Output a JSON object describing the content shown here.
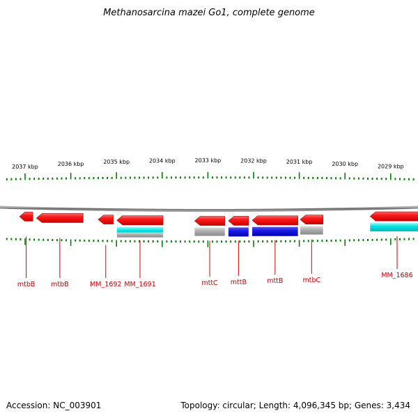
{
  "header": {
    "title": "Methanosarcina mazei Go1, complete genome"
  },
  "footer": {
    "accession": "Accession: NC_003901",
    "summary": "Topology: circular; Length: 4,096,345 bp; Genes: 3,434"
  },
  "scale": {
    "unit": "kbp",
    "ticks": [
      {
        "kbp": 2037,
        "label": "2037 kbp"
      },
      {
        "kbp": 2036,
        "label": "2036 kbp"
      },
      {
        "kbp": 2035,
        "label": "2035 kbp"
      },
      {
        "kbp": 2034,
        "label": "2034 kbp"
      },
      {
        "kbp": 2033,
        "label": "2033 kbp"
      },
      {
        "kbp": 2032,
        "label": "2032 kbp"
      },
      {
        "kbp": 2031,
        "label": "2031 kbp"
      },
      {
        "kbp": 2030,
        "label": "2030 kbp"
      },
      {
        "kbp": 2029,
        "label": "2029 kbp"
      }
    ]
  },
  "colors": {
    "backbone": "#888888",
    "gene": "#ee1111",
    "blue_feature": "#1a1ae6",
    "cyan_feature": "#00e5e5",
    "gray_feature": "#aaaaaa",
    "tick": "#008000",
    "label": "#cc0000"
  },
  "genes": [
    {
      "label": "mtbB",
      "start_kbp": 2037.12,
      "end_kbp": 2036.83,
      "strand": "reverse"
    },
    {
      "label": "mtbB",
      "start_kbp": 2036.75,
      "end_kbp": 2035.73,
      "strand": "reverse"
    },
    {
      "label": "MM_1692",
      "start_kbp": 2035.4,
      "end_kbp": 2035.07,
      "strand": "reverse"
    },
    {
      "label": "MM_1691",
      "start_kbp": 2034.99,
      "end_kbp": 2033.98,
      "strand": "reverse"
    },
    {
      "label": "mttC",
      "start_kbp": 2033.29,
      "end_kbp": 2032.63,
      "strand": "reverse"
    },
    {
      "label": "mttB",
      "start_kbp": 2032.55,
      "end_kbp": 2032.11,
      "strand": "reverse"
    },
    {
      "label": "mttB",
      "start_kbp": 2032.03,
      "end_kbp": 2031.03,
      "strand": "reverse"
    },
    {
      "label": "mtbC",
      "start_kbp": 2030.98,
      "end_kbp": 2030.48,
      "strand": "reverse"
    },
    {
      "label": "MM_1686",
      "start_kbp": 2029.45,
      "end_kbp": 2028.27,
      "strand": "reverse"
    }
  ],
  "features": [
    {
      "type": "cyan",
      "start_kbp": 2034.99,
      "end_kbp": 2033.98
    },
    {
      "type": "gray",
      "start_kbp": 2034.99,
      "end_kbp": 2033.98
    },
    {
      "type": "gray",
      "start_kbp": 2033.29,
      "end_kbp": 2032.63
    },
    {
      "type": "blue",
      "start_kbp": 2032.55,
      "end_kbp": 2032.11
    },
    {
      "type": "blue",
      "start_kbp": 2032.03,
      "end_kbp": 2031.03
    },
    {
      "type": "gray",
      "start_kbp": 2030.98,
      "end_kbp": 2030.48
    },
    {
      "type": "cyan",
      "start_kbp": 2029.45,
      "end_kbp": 2028.27
    }
  ]
}
